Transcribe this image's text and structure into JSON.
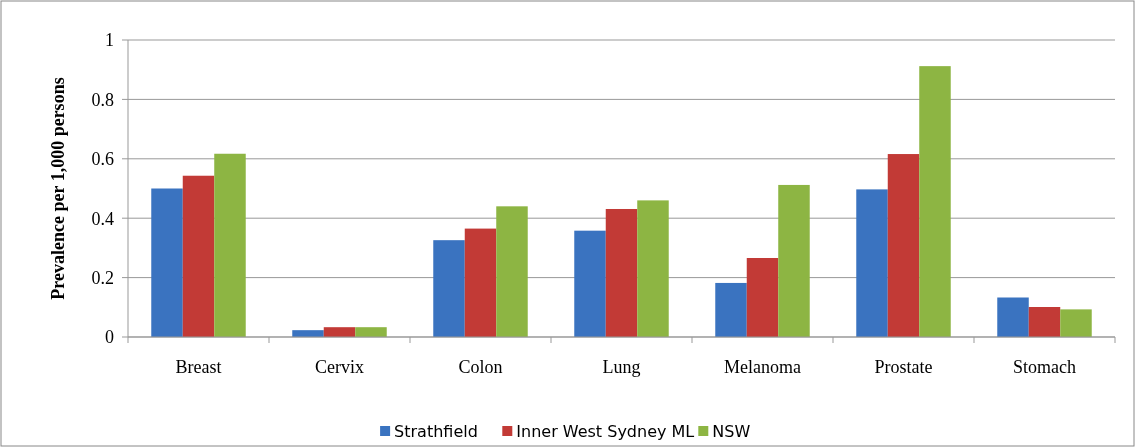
{
  "chart_data": {
    "type": "bar",
    "ylabel": "Prevalence per 1,000 persons",
    "categories": [
      "Breast",
      "Cervix",
      "Colon",
      "Lung",
      "Melanoma",
      "Prostate",
      "Stomach"
    ],
    "series": [
      {
        "name": "Strathfield",
        "color": "#3a73c0",
        "values": [
          0.5,
          0.023,
          0.326,
          0.358,
          0.182,
          0.497,
          0.133
        ]
      },
      {
        "name": "Inner West Sydney ML",
        "color": "#c23a36",
        "values": [
          0.543,
          0.033,
          0.365,
          0.431,
          0.266,
          0.616,
          0.101
        ]
      },
      {
        "name": "NSW",
        "color": "#8db543",
        "values": [
          0.617,
          0.033,
          0.44,
          0.46,
          0.512,
          0.912,
          0.093
        ]
      }
    ],
    "ylim": [
      0,
      1
    ],
    "yticks": [
      0,
      0.2,
      0.4,
      0.6,
      0.8,
      1
    ],
    "grid": "y",
    "legend": "bottom"
  }
}
